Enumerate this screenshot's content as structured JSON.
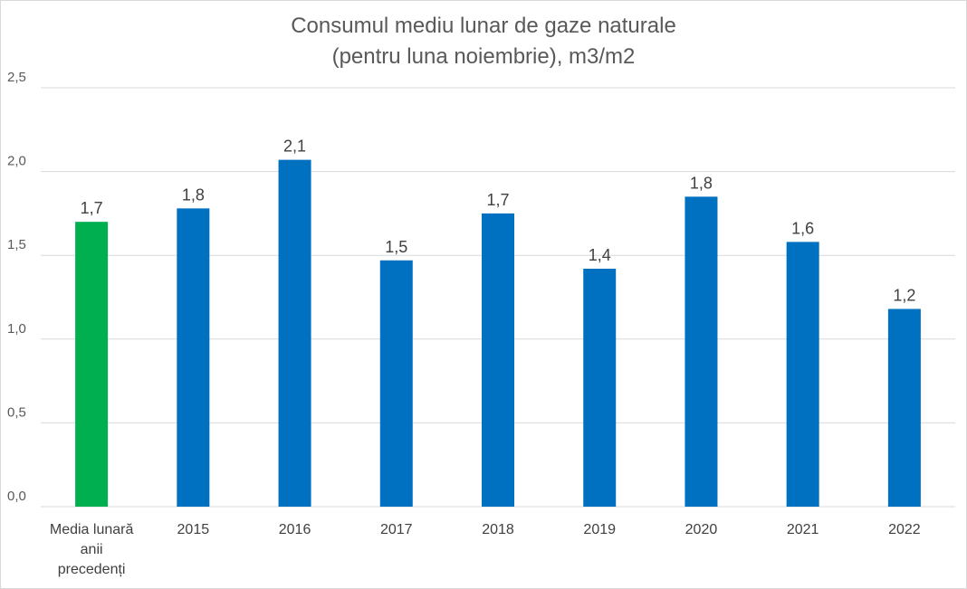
{
  "chart_data": {
    "type": "bar",
    "title_lines": [
      "Consumul mediu lunar de gaze naturale",
      "(pentru luna noiembrie), m3/m2"
    ],
    "xlabel": "",
    "ylabel": "",
    "ylim": [
      0,
      2.5
    ],
    "yticks": [
      "0,0",
      "0,5",
      "1,0",
      "1,5",
      "2,0",
      "2,5"
    ],
    "grid": true,
    "legend": "none",
    "categories": [
      [
        "Media lunară",
        "anii",
        "precedenți"
      ],
      [
        "2015"
      ],
      [
        "2016"
      ],
      [
        "2017"
      ],
      [
        "2018"
      ],
      [
        "2019"
      ],
      [
        "2020"
      ],
      [
        "2021"
      ],
      [
        "2022"
      ]
    ],
    "values": [
      1.7,
      1.78,
      2.07,
      1.47,
      1.75,
      1.42,
      1.85,
      1.58,
      1.18
    ],
    "data_labels": [
      "1,7",
      "1,8",
      "2,1",
      "1,5",
      "1,7",
      "1,4",
      "1,8",
      "1,6",
      "1,2"
    ],
    "colors": [
      "#00B050",
      "#0070C0",
      "#0070C0",
      "#0070C0",
      "#0070C0",
      "#0070C0",
      "#0070C0",
      "#0070C0",
      "#0070C0"
    ],
    "gridline_color": "#d9d9d9"
  }
}
